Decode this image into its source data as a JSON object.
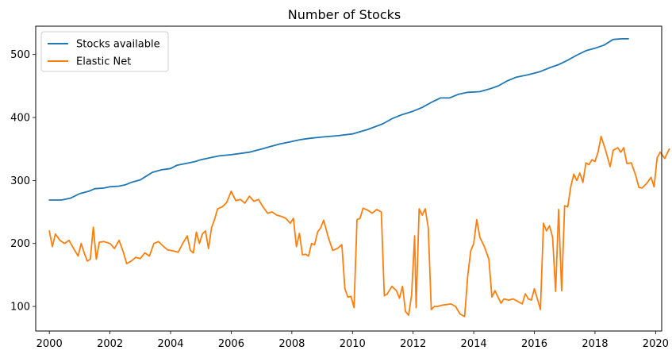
{
  "chart_data": {
    "type": "line",
    "title": "Number of Stocks",
    "xlabel": "",
    "ylabel": "",
    "xlim": [
      1999.55,
      2020.2
    ],
    "ylim": [
      61,
      545
    ],
    "x_ticks": [
      2000,
      2002,
      2004,
      2006,
      2008,
      2010,
      2012,
      2014,
      2016,
      2018,
      2020
    ],
    "y_ticks": [
      100,
      200,
      300,
      400,
      500
    ],
    "grid": false,
    "legend_position": "top-left",
    "series": [
      {
        "name": "Stocks available",
        "color": "#1f77b4",
        "points": [
          [
            2000.0,
            269
          ],
          [
            2000.4,
            269
          ],
          [
            2000.7,
            272
          ],
          [
            2001.0,
            279
          ],
          [
            2001.3,
            283
          ],
          [
            2001.5,
            287
          ],
          [
            2001.8,
            288
          ],
          [
            2002.0,
            290
          ],
          [
            2002.3,
            291
          ],
          [
            2002.5,
            293
          ],
          [
            2002.7,
            297
          ],
          [
            2003.0,
            301
          ],
          [
            2003.2,
            307
          ],
          [
            2003.4,
            313
          ],
          [
            2003.7,
            317
          ],
          [
            2004.0,
            319
          ],
          [
            2004.2,
            324
          ],
          [
            2004.5,
            327
          ],
          [
            2004.8,
            330
          ],
          [
            2005.0,
            333
          ],
          [
            2005.3,
            336
          ],
          [
            2005.6,
            339
          ],
          [
            2006.0,
            341
          ],
          [
            2006.3,
            343
          ],
          [
            2006.6,
            345
          ],
          [
            2007.0,
            350
          ],
          [
            2007.3,
            354
          ],
          [
            2007.6,
            358
          ],
          [
            2008.0,
            362
          ],
          [
            2008.3,
            365
          ],
          [
            2008.6,
            367
          ],
          [
            2009.0,
            369
          ],
          [
            2009.5,
            371
          ],
          [
            2010.0,
            374
          ],
          [
            2010.5,
            381
          ],
          [
            2011.0,
            390
          ],
          [
            2011.3,
            398
          ],
          [
            2011.6,
            404
          ],
          [
            2012.0,
            410
          ],
          [
            2012.3,
            416
          ],
          [
            2012.6,
            424
          ],
          [
            2012.9,
            431
          ],
          [
            2013.2,
            431
          ],
          [
            2013.5,
            437
          ],
          [
            2013.8,
            440
          ],
          [
            2014.2,
            441
          ],
          [
            2014.5,
            445
          ],
          [
            2014.8,
            450
          ],
          [
            2015.1,
            458
          ],
          [
            2015.4,
            464
          ],
          [
            2015.8,
            468
          ],
          [
            2016.2,
            473
          ],
          [
            2016.5,
            479
          ],
          [
            2016.8,
            484
          ],
          [
            2017.1,
            491
          ],
          [
            2017.4,
            499
          ],
          [
            2017.7,
            506
          ],
          [
            2018.0,
            510
          ],
          [
            2018.3,
            515
          ],
          [
            2018.6,
            524
          ],
          [
            2018.9,
            525
          ],
          [
            2019.1,
            525
          ]
        ]
      },
      {
        "name": "Elastic Net",
        "color": "#ff7f0e",
        "points": [
          [
            2000.0,
            220
          ],
          [
            2000.1,
            195
          ],
          [
            2000.2,
            215
          ],
          [
            2000.35,
            205
          ],
          [
            2000.5,
            200
          ],
          [
            2000.65,
            205
          ],
          [
            2000.8,
            192
          ],
          [
            2000.95,
            180
          ],
          [
            2001.05,
            200
          ],
          [
            2001.15,
            185
          ],
          [
            2001.25,
            172
          ],
          [
            2001.35,
            175
          ],
          [
            2001.45,
            226
          ],
          [
            2001.55,
            175
          ],
          [
            2001.65,
            202
          ],
          [
            2001.8,
            203
          ],
          [
            2002.0,
            200
          ],
          [
            2002.15,
            192
          ],
          [
            2002.3,
            205
          ],
          [
            2002.45,
            185
          ],
          [
            2002.55,
            168
          ],
          [
            2002.7,
            172
          ],
          [
            2002.85,
            178
          ],
          [
            2003.0,
            176
          ],
          [
            2003.15,
            185
          ],
          [
            2003.3,
            180
          ],
          [
            2003.45,
            200
          ],
          [
            2003.6,
            203
          ],
          [
            2003.75,
            196
          ],
          [
            2003.9,
            190
          ],
          [
            2004.1,
            188
          ],
          [
            2004.25,
            186
          ],
          [
            2004.4,
            200
          ],
          [
            2004.55,
            212
          ],
          [
            2004.65,
            189
          ],
          [
            2004.75,
            185
          ],
          [
            2004.85,
            218
          ],
          [
            2004.95,
            200
          ],
          [
            2005.05,
            215
          ],
          [
            2005.15,
            220
          ],
          [
            2005.25,
            192
          ],
          [
            2005.35,
            225
          ],
          [
            2005.45,
            238
          ],
          [
            2005.55,
            255
          ],
          [
            2005.7,
            258
          ],
          [
            2005.85,
            265
          ],
          [
            2006.0,
            283
          ],
          [
            2006.15,
            268
          ],
          [
            2006.3,
            270
          ],
          [
            2006.45,
            264
          ],
          [
            2006.6,
            275
          ],
          [
            2006.75,
            267
          ],
          [
            2006.9,
            270
          ],
          [
            2007.05,
            258
          ],
          [
            2007.2,
            248
          ],
          [
            2007.35,
            250
          ],
          [
            2007.5,
            245
          ],
          [
            2007.65,
            243
          ],
          [
            2007.8,
            240
          ],
          [
            2007.95,
            232
          ],
          [
            2008.05,
            240
          ],
          [
            2008.15,
            195
          ],
          [
            2008.25,
            216
          ],
          [
            2008.35,
            182
          ],
          [
            2008.45,
            183
          ],
          [
            2008.55,
            180
          ],
          [
            2008.65,
            200
          ],
          [
            2008.75,
            198
          ],
          [
            2008.85,
            218
          ],
          [
            2008.95,
            225
          ],
          [
            2009.05,
            237
          ],
          [
            2009.2,
            210
          ],
          [
            2009.35,
            189
          ],
          [
            2009.5,
            192
          ],
          [
            2009.65,
            198
          ],
          [
            2009.75,
            128
          ],
          [
            2009.85,
            115
          ],
          [
            2009.95,
            116
          ],
          [
            2010.05,
            98
          ],
          [
            2010.15,
            238
          ],
          [
            2010.25,
            240
          ],
          [
            2010.35,
            256
          ],
          [
            2010.5,
            253
          ],
          [
            2010.65,
            248
          ],
          [
            2010.8,
            254
          ],
          [
            2010.95,
            250
          ],
          [
            2011.05,
            117
          ],
          [
            2011.15,
            120
          ],
          [
            2011.3,
            132
          ],
          [
            2011.45,
            125
          ],
          [
            2011.55,
            113
          ],
          [
            2011.65,
            132
          ],
          [
            2011.75,
            92
          ],
          [
            2011.85,
            86
          ],
          [
            2011.95,
            118
          ],
          [
            2012.05,
            212
          ],
          [
            2012.1,
            98
          ],
          [
            2012.2,
            255
          ],
          [
            2012.3,
            245
          ],
          [
            2012.4,
            255
          ],
          [
            2012.5,
            225
          ],
          [
            2012.6,
            95
          ],
          [
            2012.7,
            100
          ],
          [
            2012.8,
            100
          ],
          [
            2012.95,
            102
          ],
          [
            2013.1,
            103
          ],
          [
            2013.25,
            104
          ],
          [
            2013.4,
            100
          ],
          [
            2013.55,
            88
          ],
          [
            2013.7,
            84
          ],
          [
            2013.8,
            148
          ],
          [
            2013.9,
            188
          ],
          [
            2014.0,
            200
          ],
          [
            2014.1,
            238
          ],
          [
            2014.2,
            210
          ],
          [
            2014.35,
            195
          ],
          [
            2014.5,
            175
          ],
          [
            2014.6,
            115
          ],
          [
            2014.7,
            125
          ],
          [
            2014.8,
            115
          ],
          [
            2014.9,
            105
          ],
          [
            2015.0,
            112
          ],
          [
            2015.15,
            110
          ],
          [
            2015.3,
            112
          ],
          [
            2015.45,
            108
          ],
          [
            2015.6,
            104
          ],
          [
            2015.7,
            120
          ],
          [
            2015.8,
            112
          ],
          [
            2015.9,
            110
          ],
          [
            2016.0,
            128
          ],
          [
            2016.1,
            112
          ],
          [
            2016.2,
            95
          ],
          [
            2016.3,
            232
          ],
          [
            2016.4,
            220
          ],
          [
            2016.5,
            228
          ],
          [
            2016.6,
            210
          ],
          [
            2016.7,
            124
          ],
          [
            2016.8,
            254
          ],
          [
            2016.9,
            125
          ],
          [
            2017.0,
            260
          ],
          [
            2017.1,
            258
          ],
          [
            2017.2,
            290
          ],
          [
            2017.3,
            310
          ],
          [
            2017.4,
            300
          ],
          [
            2017.5,
            312
          ],
          [
            2017.6,
            297
          ],
          [
            2017.7,
            328
          ],
          [
            2017.8,
            325
          ],
          [
            2017.9,
            333
          ],
          [
            2018.0,
            330
          ],
          [
            2018.1,
            345
          ],
          [
            2018.2,
            370
          ],
          [
            2018.35,
            348
          ],
          [
            2018.5,
            322
          ],
          [
            2018.6,
            348
          ],
          [
            2018.75,
            352
          ],
          [
            2018.85,
            345
          ],
          [
            2018.95,
            352
          ],
          [
            2019.05,
            327
          ],
          [
            2019.2,
            328
          ],
          [
            2019.35,
            307
          ],
          [
            2019.45,
            289
          ],
          [
            2019.55,
            288
          ],
          [
            2019.7,
            295
          ],
          [
            2019.85,
            305
          ],
          [
            2019.95,
            290
          ],
          [
            2020.05,
            336
          ],
          [
            2020.15,
            345
          ],
          [
            2020.3,
            335
          ],
          [
            2020.45,
            350
          ]
        ]
      }
    ]
  }
}
